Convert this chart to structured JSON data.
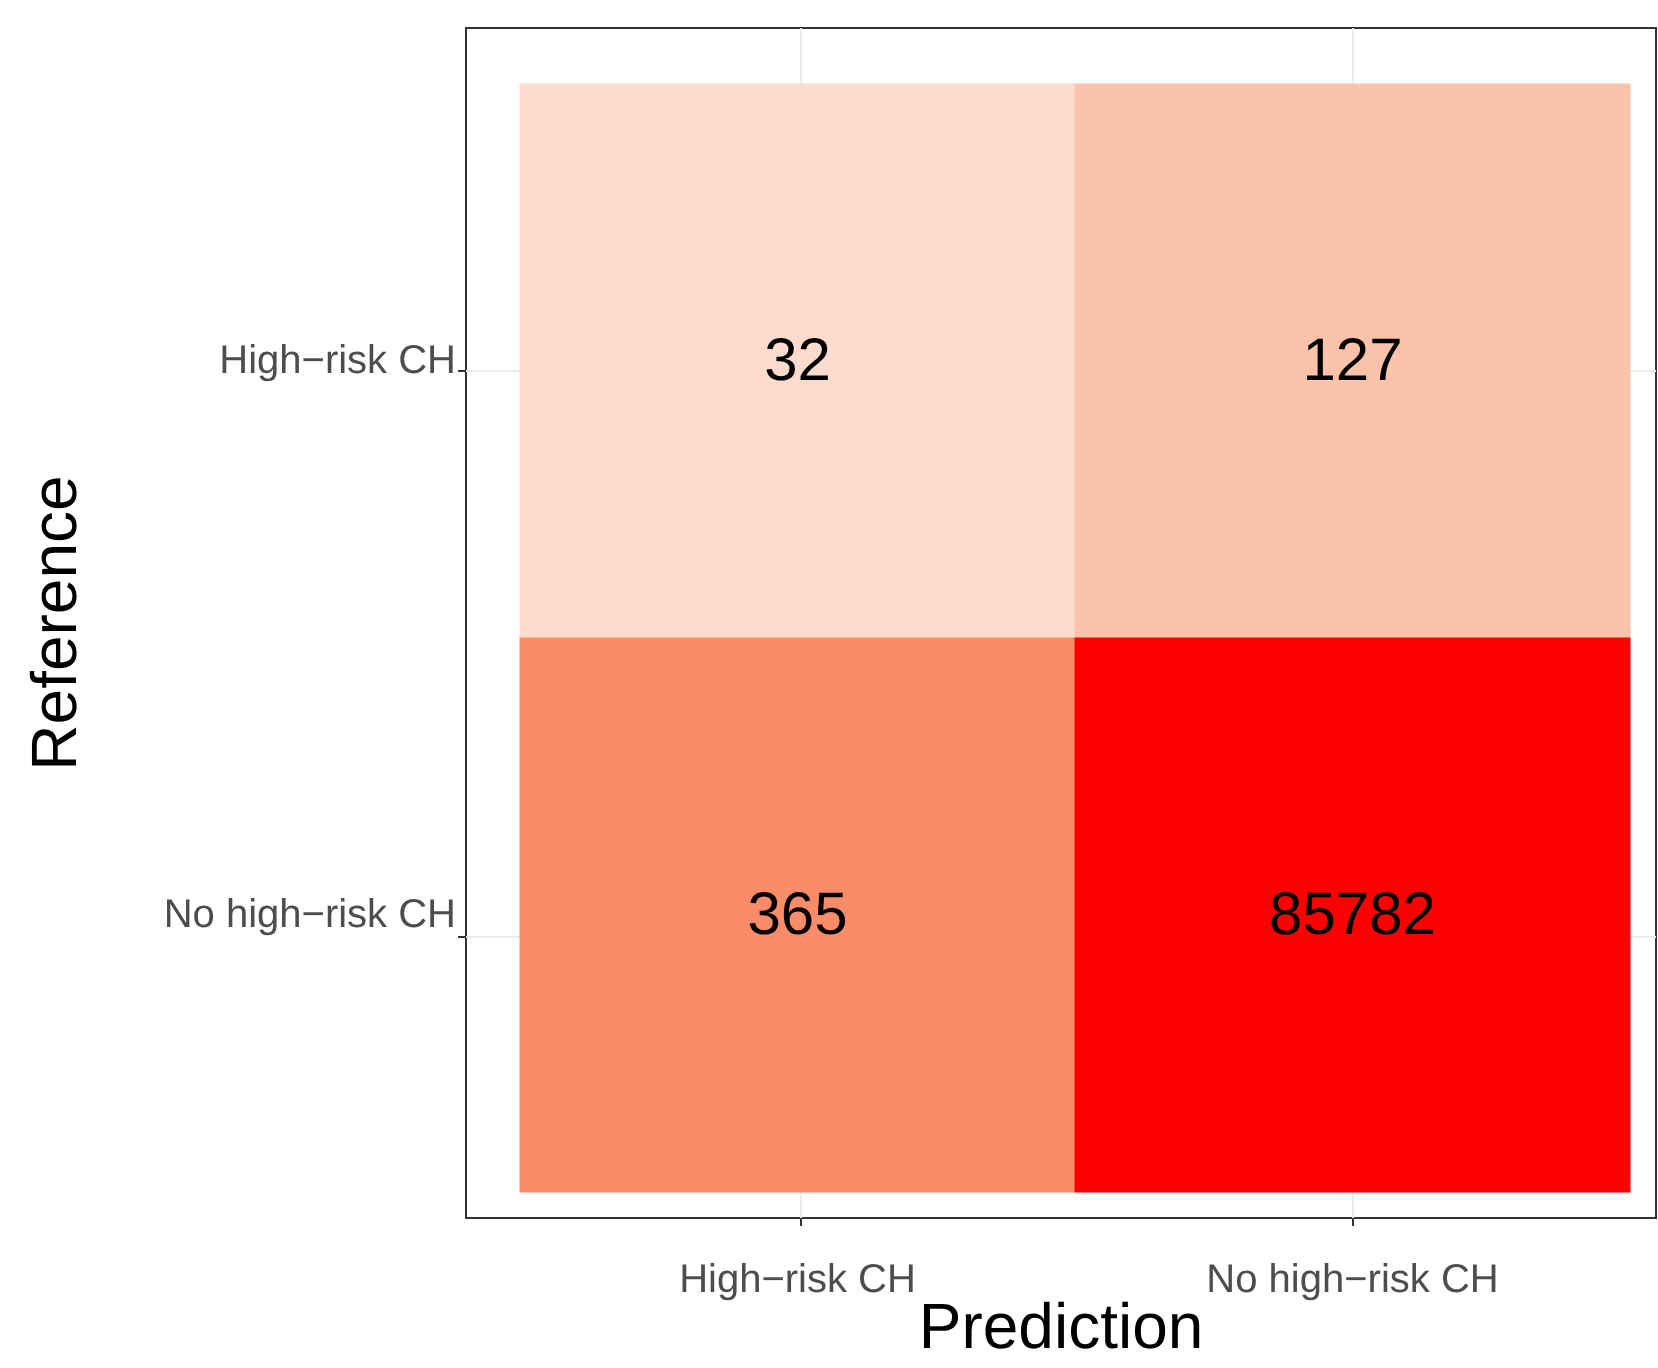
{
  "chart_data": {
    "type": "heatmap",
    "xlabel": "Prediction",
    "ylabel": "Reference",
    "categories": [
      "High−risk CH",
      "No high−risk CH"
    ],
    "y_categories": [
      "High−risk CH",
      "No high−risk CH"
    ],
    "cells": [
      [
        32,
        127
      ],
      [
        365,
        85782
      ]
    ],
    "colors": [
      [
        "#fedccd",
        "#fcc3ab"
      ],
      [
        "#fb8c6a",
        "#ff0000"
      ]
    ],
    "data_labels": true,
    "grid": true
  }
}
